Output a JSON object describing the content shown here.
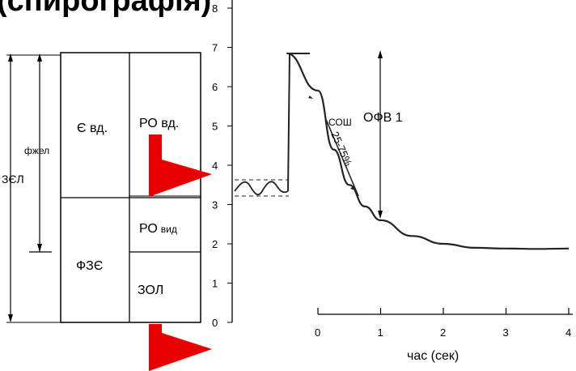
{
  "header": {
    "title": "(спирографія)"
  },
  "volume_diagram": {
    "labels": {
      "zel": "ЗЄЛ",
      "fzhel": "фжел",
      "e_vd": "Є вд.",
      "ro_vd": "РО вд.",
      "ro_vyd_main": "РО",
      "ro_vyd_sub": "вид",
      "fze": "ФЗЄ",
      "zol": "ЗОЛ"
    }
  },
  "chart_data": {
    "type": "line",
    "y_axis_ticks": [
      "0",
      "1",
      "2",
      "3",
      "4",
      "5",
      "6",
      "7",
      "8"
    ],
    "x_axis_ticks": [
      "0",
      "1",
      "2",
      "3",
      "4"
    ],
    "xlabel": "час (сек)",
    "ylim": [
      0,
      8
    ],
    "xlim": [
      -0.5,
      4
    ],
    "annotations": {
      "sosh": "СОШ",
      "ofv1": "ОФВ 1",
      "range": "25-75%"
    },
    "series": [
      {
        "x": [
          -0.5,
          0,
          0.25,
          0.5,
          0.75,
          1.0,
          1.5,
          2.0,
          2.5,
          3.0,
          3.5,
          4.0
        ],
        "values": [
          6.85,
          5.9,
          4.4,
          3.5,
          2.95,
          2.6,
          2.2,
          2.0,
          1.9,
          1.88,
          1.87,
          1.88
        ]
      }
    ]
  },
  "colors": {
    "arrow": "#e60000",
    "ink": "#000000",
    "line": "#222222"
  }
}
